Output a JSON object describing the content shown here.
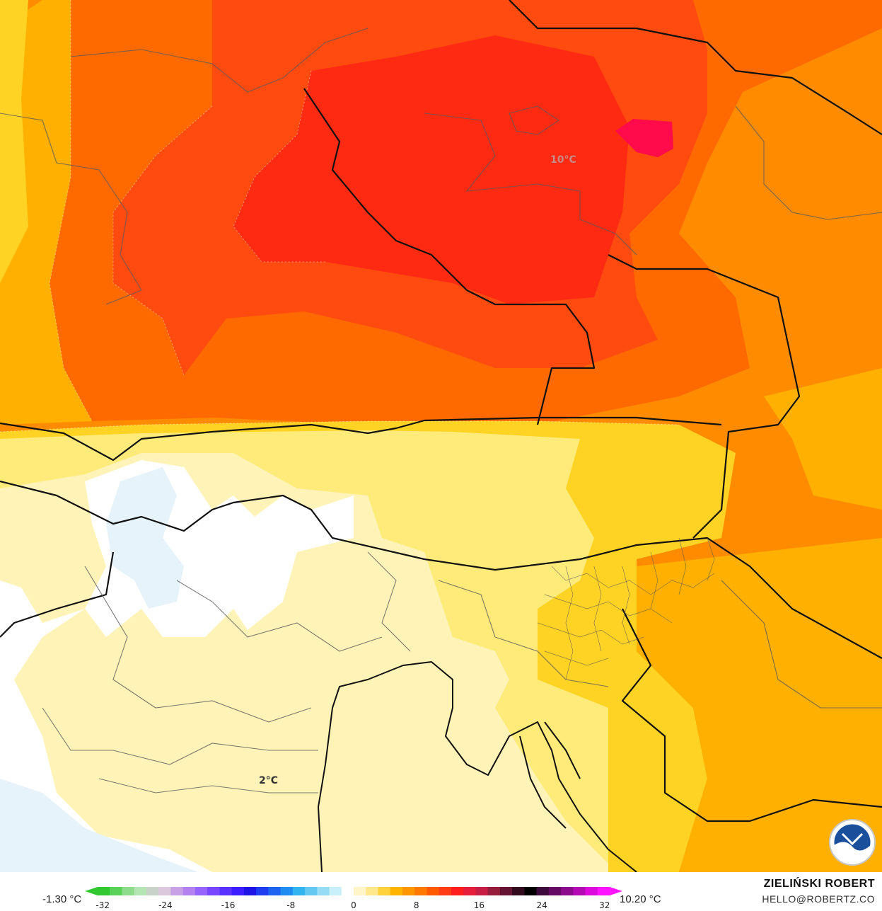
{
  "map": {
    "labels": [
      {
        "text": "10°C",
        "name": "label-10c"
      },
      {
        "text": "2°C",
        "name": "label-2c"
      }
    ],
    "palette": {
      "white": "#ffffff",
      "pale_blue": "#e6f3fb",
      "cream": "#fff3b8",
      "light_yellow": "#ffeb7a",
      "yellow": "#ffd324",
      "amber": "#ffb000",
      "orange": "#ff8c00",
      "deep_orange": "#ff6a00",
      "red_orange": "#ff4a10",
      "red": "#ff2a12",
      "crimson": "#ff0a4a"
    },
    "logo": "noaa-logo"
  },
  "colorbar": {
    "min_label": "-1.30 °C",
    "max_label": "10.20 °C",
    "ticks": [
      "-32",
      "-24",
      "-16",
      "-8",
      "0",
      "8",
      "16",
      "24",
      "32"
    ],
    "colors": [
      "#32c832",
      "#5ad25a",
      "#8cdc8c",
      "#b4e6b4",
      "#c8d2c8",
      "#dcc8dc",
      "#c8a0e6",
      "#b482f0",
      "#9664fa",
      "#7846ff",
      "#5a32ff",
      "#3c1eff",
      "#1e14e6",
      "#1e3cf0",
      "#1e64f0",
      "#1e8cf0",
      "#32b4f0",
      "#64c8f0",
      "#96dcf5",
      "#c8f0fa",
      "#ffffff",
      "#fff5c8",
      "#ffe88c",
      "#ffd23c",
      "#ffb400",
      "#ff9600",
      "#ff7800",
      "#ff5a00",
      "#ff3c14",
      "#ff1e1e",
      "#e61e3c",
      "#c81e46",
      "#961e3c",
      "#641432",
      "#320a1e",
      "#000000",
      "#3c0a3c",
      "#640a64",
      "#8c0a8c",
      "#b40ab4",
      "#dc0adc",
      "#ff14ff"
    ]
  },
  "credits": {
    "author": "ZIELIŃSKI ROBERT",
    "email": "HELLO@ROBERTZ.CO"
  }
}
